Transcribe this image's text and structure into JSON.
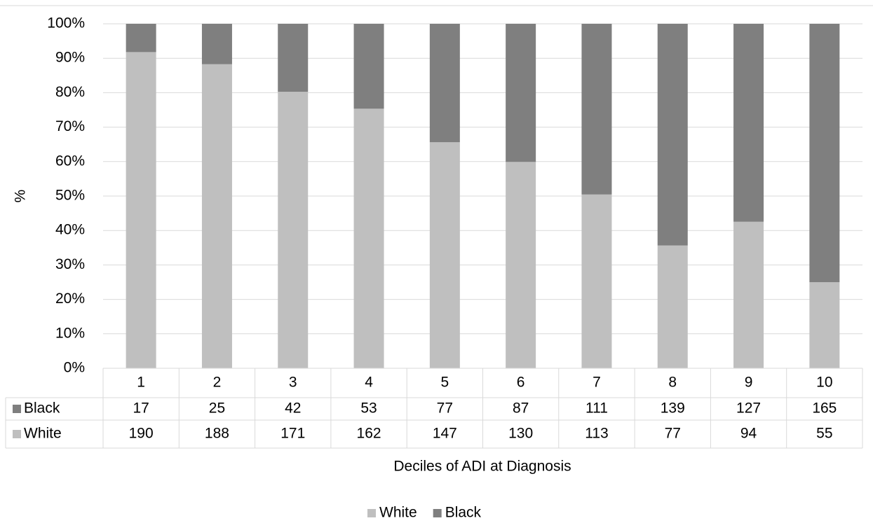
{
  "chart_data": {
    "type": "bar",
    "stacking": "percent",
    "y_label": "%",
    "x_label": "Deciles of ADI at Diagnosis",
    "categories": [
      "1",
      "2",
      "3",
      "4",
      "5",
      "6",
      "7",
      "8",
      "9",
      "10"
    ],
    "series": [
      {
        "name": "White",
        "color": "#bfbfbf",
        "values": [
          190,
          188,
          171,
          162,
          147,
          130,
          113,
          77,
          94,
          55
        ]
      },
      {
        "name": "Black",
        "color": "#7f7f7f",
        "values": [
          17,
          25,
          42,
          53,
          77,
          87,
          111,
          139,
          127,
          165
        ]
      }
    ],
    "ylim": [
      0,
      100
    ],
    "yticks": [
      {
        "value": 0,
        "label": "0%"
      },
      {
        "value": 10,
        "label": "10%"
      },
      {
        "value": 20,
        "label": "20%"
      },
      {
        "value": 30,
        "label": "30%"
      },
      {
        "value": 40,
        "label": "40%"
      },
      {
        "value": 50,
        "label": "50%"
      },
      {
        "value": 60,
        "label": "60%"
      },
      {
        "value": 70,
        "label": "70%"
      },
      {
        "value": 80,
        "label": "80%"
      },
      {
        "value": 90,
        "label": "90%"
      },
      {
        "value": 100,
        "label": "100%"
      }
    ],
    "grid": true,
    "data_table": true,
    "legend": "bottom"
  }
}
